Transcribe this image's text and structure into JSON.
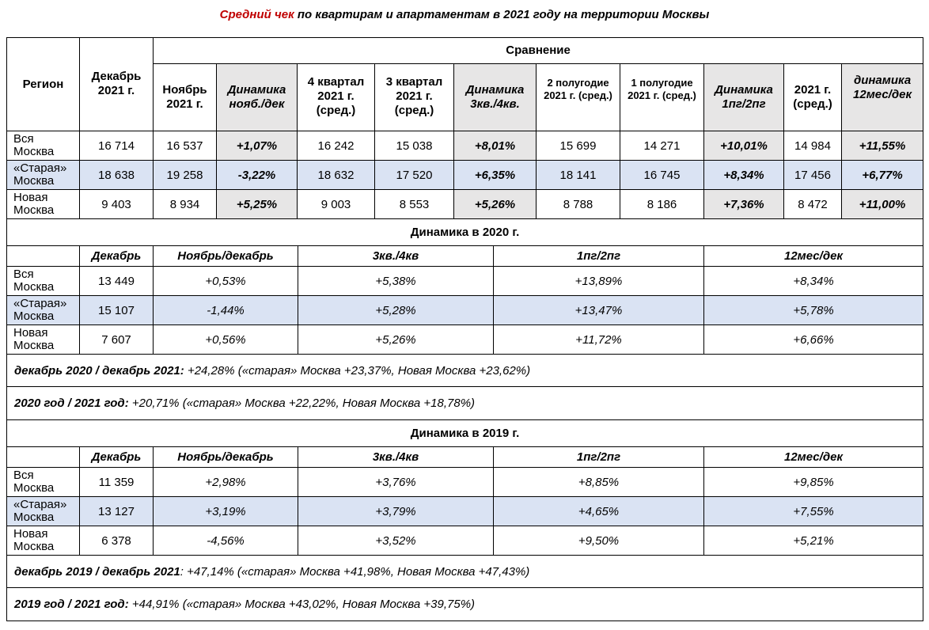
{
  "title": {
    "accent": "Средний чек",
    "rest": " по квартирам и апартаментам в 2021 году на территории Москвы"
  },
  "colors": {
    "accent": "#c00000",
    "dynamics_bg": "#e7e6e6",
    "highlight_row": "#dae3f3"
  },
  "main_table": {
    "region_header": "Регион",
    "dec_header": "Декабрь 2021 г.",
    "group_header": "Сравнение",
    "columns": [
      {
        "label": "Ноябрь 2021 г.",
        "kind": "value"
      },
      {
        "label": "Динамика нояб./дек",
        "kind": "dyn"
      },
      {
        "label": "4 квартал 2021 г. (сред.)",
        "kind": "value"
      },
      {
        "label": "3 квартал 2021 г. (сред.)",
        "kind": "value"
      },
      {
        "label": "Динамика 3кв./4кв.",
        "kind": "dyn"
      },
      {
        "label": "2 полугодие 2021 г. (сред.)",
        "kind": "small"
      },
      {
        "label": "1 полугодие 2021 г. (сред.)",
        "kind": "small"
      },
      {
        "label": "Динамика 1пг/2пг",
        "kind": "dyn"
      },
      {
        "label": "2021 г. (сред.)",
        "kind": "value"
      },
      {
        "label": "динамика 12мес/дек",
        "kind": "dyn"
      }
    ],
    "rows": [
      {
        "region": [
          "Вся",
          "Москва"
        ],
        "values": [
          "16 714",
          "16 537",
          "+1,07%",
          "16 242",
          "15 038",
          "+8,01%",
          "15 699",
          "14 271",
          "+10,01%",
          "14 984",
          "+11,55%"
        ],
        "highlight": false
      },
      {
        "region": [
          "«Старая»",
          "Москва"
        ],
        "values": [
          "18 638",
          "19 258",
          "-3,22%",
          "18 632",
          "17 520",
          "+6,35%",
          "18 141",
          "16 745",
          "+8,34%",
          "17 456",
          "+6,77%"
        ],
        "highlight": true
      },
      {
        "region": [
          "Новая",
          "Москва"
        ],
        "values": [
          "9 403",
          "8 934",
          "+5,25%",
          "9 003",
          "8 553",
          "+5,26%",
          "8 788",
          "8 186",
          "+7,36%",
          "8 472",
          "+11,00%"
        ],
        "highlight": false
      }
    ]
  },
  "sections": [
    {
      "title": "Динамика в 2020 г.",
      "headers": [
        "",
        "Декабрь",
        "Ноябрь/декабрь",
        "3кв./4кв",
        "1пг/2пг",
        "12мес/дек"
      ],
      "rows": [
        {
          "region": [
            "Вся",
            "Москва"
          ],
          "values": [
            "13 449",
            "+0,53%",
            "+5,38%",
            "+13,89%",
            "+8,34%"
          ],
          "highlight": false
        },
        {
          "region": [
            "«Старая»",
            "Москва"
          ],
          "values": [
            "15 107",
            "-1,44%",
            "+5,28%",
            "+13,47%",
            "+5,78%"
          ],
          "highlight": true
        },
        {
          "region": [
            "Новая",
            "Москва"
          ],
          "values": [
            "7 607",
            "+0,56%",
            "+5,26%",
            "+11,72%",
            "+6,66%"
          ],
          "highlight": false
        }
      ],
      "notes": [
        {
          "label": "декабрь 2020 / декабрь 2021:",
          "text": " +24,28% («старая» Москва +23,37%, Новая Москва +23,62%)"
        },
        {
          "label": "2020 год / 2021 год:",
          "text": " +20,71% («старая» Москва +22,22%, Новая Москва +18,78%)"
        }
      ]
    },
    {
      "title": "Динамика в 2019 г.",
      "headers": [
        "",
        "Декабрь",
        "Ноябрь/декабрь",
        "3кв./4кв",
        "1пг/2пг",
        "12мес/дек"
      ],
      "rows": [
        {
          "region": [
            "Вся",
            "Москва"
          ],
          "values": [
            "11 359",
            "+2,98%",
            "+3,76%",
            "+8,85%",
            "+9,85%"
          ],
          "highlight": false
        },
        {
          "region": [
            "«Старая»",
            "Москва"
          ],
          "values": [
            "13 127",
            "+3,19%",
            "+3,79%",
            "+4,65%",
            "+7,55%"
          ],
          "highlight": true
        },
        {
          "region": [
            "Новая",
            "Москва"
          ],
          "values": [
            "6 378",
            "-4,56%",
            "+3,52%",
            "+9,50%",
            "+5,21%"
          ],
          "highlight": false
        }
      ],
      "notes": [
        {
          "label": "декабрь 2019 / декабрь 2021",
          "text": ": +47,14% («старая» Москва +41,98%, Новая Москва +47,43%)"
        },
        {
          "label": "2019 год / 2021 год:",
          "text": " +44,91% («старая» Москва +43,02%, Новая Москва +39,75%)"
        }
      ]
    }
  ]
}
